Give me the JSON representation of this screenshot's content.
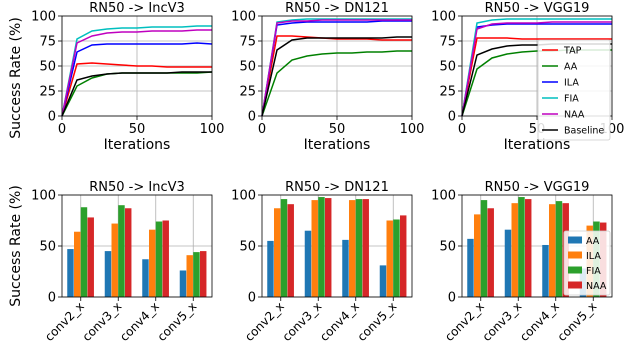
{
  "figure": {
    "ylabel": "Success Rate (%)",
    "line_xlabel": "Iterations"
  },
  "chart_data": [
    {
      "type": "line",
      "title": "RN50 -> IncV3",
      "xlabel": "Iterations",
      "ylabel": "Success Rate (%)",
      "xlim": [
        0,
        100
      ],
      "ylim": [
        0,
        100
      ],
      "xticks": [
        0,
        50,
        100
      ],
      "yticks": [
        0,
        25,
        50,
        75,
        100
      ],
      "grid": true,
      "x": [
        0,
        10,
        20,
        30,
        40,
        50,
        60,
        70,
        80,
        90,
        100
      ],
      "series": [
        {
          "name": "TAP",
          "color": "#ff0000",
          "values": [
            0,
            52,
            53,
            52,
            51,
            50,
            50,
            49,
            49,
            49,
            49
          ]
        },
        {
          "name": "AA",
          "color": "#008000",
          "values": [
            0,
            30,
            38,
            42,
            43,
            43,
            43,
            43,
            43,
            43,
            44
          ]
        },
        {
          "name": "ILA",
          "color": "#0000ff",
          "values": [
            0,
            64,
            71,
            72,
            72,
            72,
            72,
            72,
            72,
            73,
            72
          ]
        },
        {
          "name": "FIA",
          "color": "#00bfbf",
          "values": [
            0,
            77,
            85,
            87,
            88,
            88,
            89,
            89,
            89,
            90,
            90
          ]
        },
        {
          "name": "NAA",
          "color": "#bf00bf",
          "values": [
            0,
            73,
            80,
            83,
            84,
            84,
            85,
            85,
            85,
            86,
            86
          ]
        },
        {
          "name": "Baseline",
          "color": "#000000",
          "values": [
            0,
            36,
            40,
            42,
            43,
            43,
            43,
            43,
            44,
            44,
            44
          ]
        }
      ]
    },
    {
      "type": "line",
      "title": "RN50 -> DN121",
      "xlabel": "Iterations",
      "xlim": [
        0,
        100
      ],
      "ylim": [
        0,
        100
      ],
      "xticks": [
        0,
        50,
        100
      ],
      "yticks": [
        0,
        25,
        50,
        75,
        100
      ],
      "grid": true,
      "x": [
        0,
        10,
        20,
        30,
        40,
        50,
        60,
        70,
        80,
        90,
        100
      ],
      "series": [
        {
          "name": "TAP",
          "color": "#ff0000",
          "values": [
            0,
            80,
            80,
            79,
            78,
            77,
            77,
            77,
            76,
            76,
            76
          ]
        },
        {
          "name": "AA",
          "color": "#008000",
          "values": [
            0,
            43,
            56,
            60,
            62,
            63,
            63,
            64,
            64,
            65,
            65
          ]
        },
        {
          "name": "ILA",
          "color": "#0000ff",
          "values": [
            0,
            91,
            93,
            94,
            94,
            94,
            94,
            94,
            95,
            95,
            95
          ]
        },
        {
          "name": "FIA",
          "color": "#00bfbf",
          "values": [
            0,
            94,
            96,
            97,
            97,
            97,
            97,
            97,
            97,
            97,
            97
          ]
        },
        {
          "name": "NAA",
          "color": "#bf00bf",
          "values": [
            0,
            93,
            95,
            95,
            96,
            96,
            96,
            96,
            96,
            96,
            96
          ]
        },
        {
          "name": "Baseline",
          "color": "#000000",
          "values": [
            0,
            66,
            76,
            78,
            78,
            78,
            78,
            78,
            78,
            79,
            79
          ]
        }
      ]
    },
    {
      "type": "line",
      "title": "RN50 -> VGG19",
      "xlabel": "Iterations",
      "xlim": [
        0,
        100
      ],
      "ylim": [
        0,
        100
      ],
      "xticks": [
        0,
        50,
        100
      ],
      "yticks": [
        0,
        25,
        50,
        75,
        100
      ],
      "grid": true,
      "legend": "right",
      "x": [
        0,
        10,
        20,
        30,
        40,
        50,
        60,
        70,
        80,
        90,
        100
      ],
      "series": [
        {
          "name": "TAP",
          "color": "#ff0000",
          "values": [
            0,
            78,
            78,
            78,
            77,
            77,
            77,
            77,
            77,
            77,
            77
          ]
        },
        {
          "name": "AA",
          "color": "#008000",
          "values": [
            0,
            47,
            58,
            62,
            64,
            65,
            65,
            66,
            66,
            66,
            66
          ]
        },
        {
          "name": "ILA",
          "color": "#0000ff",
          "values": [
            0,
            89,
            91,
            92,
            92,
            92,
            92,
            92,
            92,
            92,
            92
          ]
        },
        {
          "name": "FIA",
          "color": "#00bfbf",
          "values": [
            0,
            93,
            96,
            97,
            97,
            97,
            97,
            97,
            97,
            97,
            97
          ]
        },
        {
          "name": "NAA",
          "color": "#bf00bf",
          "values": [
            0,
            87,
            92,
            93,
            93,
            93,
            94,
            94,
            94,
            94,
            94
          ]
        },
        {
          "name": "Baseline",
          "color": "#000000",
          "values": [
            0,
            61,
            67,
            70,
            71,
            71,
            72,
            72,
            72,
            72,
            72
          ]
        }
      ]
    },
    {
      "type": "bar",
      "title": "RN50 -> IncV3",
      "ylabel": "Success Rate (%)",
      "categories": [
        "conv2_x",
        "conv3_x",
        "conv4_x",
        "conv5_x"
      ],
      "ylim": [
        0,
        100
      ],
      "yticks": [
        0,
        50,
        100
      ],
      "grid": true,
      "series": [
        {
          "name": "AA",
          "color": "#1f77b4",
          "values": [
            47,
            45,
            37,
            26
          ]
        },
        {
          "name": "ILA",
          "color": "#ff7f0e",
          "values": [
            64,
            72,
            66,
            41
          ]
        },
        {
          "name": "FIA",
          "color": "#2ca02c",
          "values": [
            88,
            90,
            74,
            44
          ]
        },
        {
          "name": "NAA",
          "color": "#d62728",
          "values": [
            78,
            87,
            75,
            45
          ]
        }
      ]
    },
    {
      "type": "bar",
      "title": "RN50 -> DN121",
      "categories": [
        "conv2_x",
        "conv3_x",
        "conv4_x",
        "conv5_x"
      ],
      "ylim": [
        0,
        100
      ],
      "yticks": [
        0,
        50,
        100
      ],
      "grid": true,
      "series": [
        {
          "name": "AA",
          "color": "#1f77b4",
          "values": [
            55,
            65,
            56,
            31
          ]
        },
        {
          "name": "ILA",
          "color": "#ff7f0e",
          "values": [
            87,
            95,
            95,
            75
          ]
        },
        {
          "name": "FIA",
          "color": "#2ca02c",
          "values": [
            96,
            98,
            96,
            76
          ]
        },
        {
          "name": "NAA",
          "color": "#d62728",
          "values": [
            91,
            97,
            96,
            80
          ]
        }
      ]
    },
    {
      "type": "bar",
      "title": "RN50 -> VGG19",
      "categories": [
        "conv2_x",
        "conv3_x",
        "conv4_x",
        "conv5_x"
      ],
      "ylim": [
        0,
        100
      ],
      "yticks": [
        0,
        50,
        100
      ],
      "grid": true,
      "legend": "right",
      "series": [
        {
          "name": "AA",
          "color": "#1f77b4",
          "values": [
            57,
            66,
            51,
            28
          ]
        },
        {
          "name": "ILA",
          "color": "#ff7f0e",
          "values": [
            81,
            92,
            91,
            70
          ]
        },
        {
          "name": "FIA",
          "color": "#2ca02c",
          "values": [
            95,
            98,
            94,
            74
          ]
        },
        {
          "name": "NAA",
          "color": "#d62728",
          "values": [
            87,
            96,
            92,
            73
          ]
        }
      ]
    }
  ]
}
